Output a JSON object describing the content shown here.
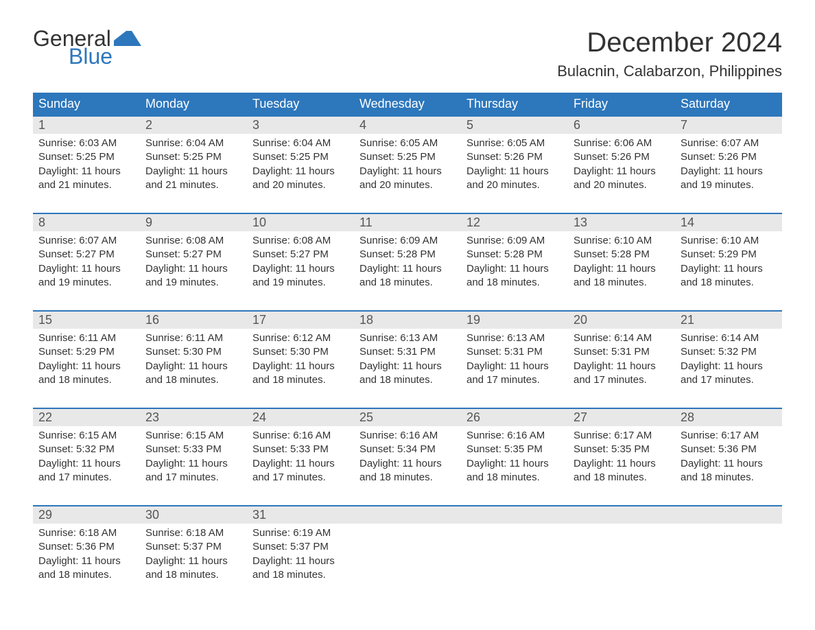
{
  "logo": {
    "line1": "General",
    "line2": "Blue",
    "brand_color": "#2d77bc"
  },
  "title": "December 2024",
  "location": "Bulacnin, Calabarzon, Philippines",
  "colors": {
    "header_bg": "#2d77bc",
    "header_text": "#ffffff",
    "daynum_bg": "#e8e8e8",
    "text": "#333333",
    "week_border": "#2d77bc"
  },
  "typography": {
    "title_fontsize": 40,
    "location_fontsize": 22,
    "dayheader_fontsize": 18,
    "daynum_fontsize": 18,
    "body_fontsize": 15
  },
  "calendar": {
    "type": "table",
    "columns": 7,
    "day_names": [
      "Sunday",
      "Monday",
      "Tuesday",
      "Wednesday",
      "Thursday",
      "Friday",
      "Saturday"
    ],
    "weeks": [
      {
        "days": [
          {
            "n": "1",
            "sunrise": "Sunrise: 6:03 AM",
            "sunset": "Sunset: 5:25 PM",
            "d1": "Daylight: 11 hours",
            "d2": "and 21 minutes."
          },
          {
            "n": "2",
            "sunrise": "Sunrise: 6:04 AM",
            "sunset": "Sunset: 5:25 PM",
            "d1": "Daylight: 11 hours",
            "d2": "and 21 minutes."
          },
          {
            "n": "3",
            "sunrise": "Sunrise: 6:04 AM",
            "sunset": "Sunset: 5:25 PM",
            "d1": "Daylight: 11 hours",
            "d2": "and 20 minutes."
          },
          {
            "n": "4",
            "sunrise": "Sunrise: 6:05 AM",
            "sunset": "Sunset: 5:25 PM",
            "d1": "Daylight: 11 hours",
            "d2": "and 20 minutes."
          },
          {
            "n": "5",
            "sunrise": "Sunrise: 6:05 AM",
            "sunset": "Sunset: 5:26 PM",
            "d1": "Daylight: 11 hours",
            "d2": "and 20 minutes."
          },
          {
            "n": "6",
            "sunrise": "Sunrise: 6:06 AM",
            "sunset": "Sunset: 5:26 PM",
            "d1": "Daylight: 11 hours",
            "d2": "and 20 minutes."
          },
          {
            "n": "7",
            "sunrise": "Sunrise: 6:07 AM",
            "sunset": "Sunset: 5:26 PM",
            "d1": "Daylight: 11 hours",
            "d2": "and 19 minutes."
          }
        ]
      },
      {
        "days": [
          {
            "n": "8",
            "sunrise": "Sunrise: 6:07 AM",
            "sunset": "Sunset: 5:27 PM",
            "d1": "Daylight: 11 hours",
            "d2": "and 19 minutes."
          },
          {
            "n": "9",
            "sunrise": "Sunrise: 6:08 AM",
            "sunset": "Sunset: 5:27 PM",
            "d1": "Daylight: 11 hours",
            "d2": "and 19 minutes."
          },
          {
            "n": "10",
            "sunrise": "Sunrise: 6:08 AM",
            "sunset": "Sunset: 5:27 PM",
            "d1": "Daylight: 11 hours",
            "d2": "and 19 minutes."
          },
          {
            "n": "11",
            "sunrise": "Sunrise: 6:09 AM",
            "sunset": "Sunset: 5:28 PM",
            "d1": "Daylight: 11 hours",
            "d2": "and 18 minutes."
          },
          {
            "n": "12",
            "sunrise": "Sunrise: 6:09 AM",
            "sunset": "Sunset: 5:28 PM",
            "d1": "Daylight: 11 hours",
            "d2": "and 18 minutes."
          },
          {
            "n": "13",
            "sunrise": "Sunrise: 6:10 AM",
            "sunset": "Sunset: 5:28 PM",
            "d1": "Daylight: 11 hours",
            "d2": "and 18 minutes."
          },
          {
            "n": "14",
            "sunrise": "Sunrise: 6:10 AM",
            "sunset": "Sunset: 5:29 PM",
            "d1": "Daylight: 11 hours",
            "d2": "and 18 minutes."
          }
        ]
      },
      {
        "days": [
          {
            "n": "15",
            "sunrise": "Sunrise: 6:11 AM",
            "sunset": "Sunset: 5:29 PM",
            "d1": "Daylight: 11 hours",
            "d2": "and 18 minutes."
          },
          {
            "n": "16",
            "sunrise": "Sunrise: 6:11 AM",
            "sunset": "Sunset: 5:30 PM",
            "d1": "Daylight: 11 hours",
            "d2": "and 18 minutes."
          },
          {
            "n": "17",
            "sunrise": "Sunrise: 6:12 AM",
            "sunset": "Sunset: 5:30 PM",
            "d1": "Daylight: 11 hours",
            "d2": "and 18 minutes."
          },
          {
            "n": "18",
            "sunrise": "Sunrise: 6:13 AM",
            "sunset": "Sunset: 5:31 PM",
            "d1": "Daylight: 11 hours",
            "d2": "and 18 minutes."
          },
          {
            "n": "19",
            "sunrise": "Sunrise: 6:13 AM",
            "sunset": "Sunset: 5:31 PM",
            "d1": "Daylight: 11 hours",
            "d2": "and 17 minutes."
          },
          {
            "n": "20",
            "sunrise": "Sunrise: 6:14 AM",
            "sunset": "Sunset: 5:31 PM",
            "d1": "Daylight: 11 hours",
            "d2": "and 17 minutes."
          },
          {
            "n": "21",
            "sunrise": "Sunrise: 6:14 AM",
            "sunset": "Sunset: 5:32 PM",
            "d1": "Daylight: 11 hours",
            "d2": "and 17 minutes."
          }
        ]
      },
      {
        "days": [
          {
            "n": "22",
            "sunrise": "Sunrise: 6:15 AM",
            "sunset": "Sunset: 5:32 PM",
            "d1": "Daylight: 11 hours",
            "d2": "and 17 minutes."
          },
          {
            "n": "23",
            "sunrise": "Sunrise: 6:15 AM",
            "sunset": "Sunset: 5:33 PM",
            "d1": "Daylight: 11 hours",
            "d2": "and 17 minutes."
          },
          {
            "n": "24",
            "sunrise": "Sunrise: 6:16 AM",
            "sunset": "Sunset: 5:33 PM",
            "d1": "Daylight: 11 hours",
            "d2": "and 17 minutes."
          },
          {
            "n": "25",
            "sunrise": "Sunrise: 6:16 AM",
            "sunset": "Sunset: 5:34 PM",
            "d1": "Daylight: 11 hours",
            "d2": "and 18 minutes."
          },
          {
            "n": "26",
            "sunrise": "Sunrise: 6:16 AM",
            "sunset": "Sunset: 5:35 PM",
            "d1": "Daylight: 11 hours",
            "d2": "and 18 minutes."
          },
          {
            "n": "27",
            "sunrise": "Sunrise: 6:17 AM",
            "sunset": "Sunset: 5:35 PM",
            "d1": "Daylight: 11 hours",
            "d2": "and 18 minutes."
          },
          {
            "n": "28",
            "sunrise": "Sunrise: 6:17 AM",
            "sunset": "Sunset: 5:36 PM",
            "d1": "Daylight: 11 hours",
            "d2": "and 18 minutes."
          }
        ]
      },
      {
        "days": [
          {
            "n": "29",
            "sunrise": "Sunrise: 6:18 AM",
            "sunset": "Sunset: 5:36 PM",
            "d1": "Daylight: 11 hours",
            "d2": "and 18 minutes."
          },
          {
            "n": "30",
            "sunrise": "Sunrise: 6:18 AM",
            "sunset": "Sunset: 5:37 PM",
            "d1": "Daylight: 11 hours",
            "d2": "and 18 minutes."
          },
          {
            "n": "31",
            "sunrise": "Sunrise: 6:19 AM",
            "sunset": "Sunset: 5:37 PM",
            "d1": "Daylight: 11 hours",
            "d2": "and 18 minutes."
          },
          null,
          null,
          null,
          null
        ]
      }
    ]
  }
}
